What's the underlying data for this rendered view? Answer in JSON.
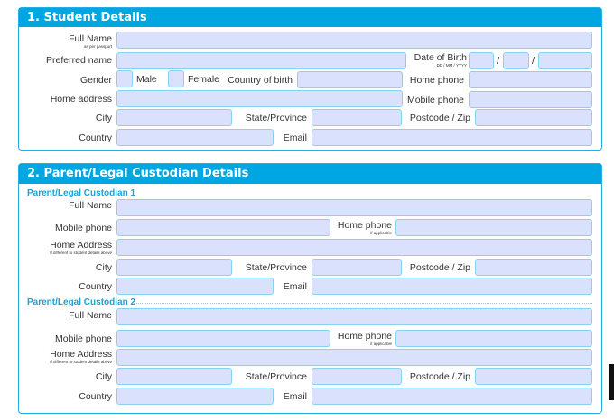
{
  "student": {
    "title": "1. Student Details",
    "full_name": "Full Name",
    "full_name_sub": "as per passport",
    "preferred_name": "Preferred name",
    "dob": "Date of Birth",
    "dob_sub": "DD / MM / YYYY",
    "dob_sep1": "/",
    "dob_sep2": "/",
    "gender": "Gender",
    "male": "Male",
    "female": "Female",
    "country_of_birth": "Country of birth",
    "home_phone": "Home phone",
    "home_address": "Home address",
    "mobile_phone": "Mobile phone",
    "city": "City",
    "state": "State/Province",
    "postcode": "Postcode / Zip",
    "country": "Country",
    "email": "Email"
  },
  "parent": {
    "title": "2. Parent/Legal Custodian Details",
    "custodians": [
      {
        "heading": "Parent/Legal Custodian 1",
        "full_name": "Full Name",
        "mobile_phone": "Mobile phone",
        "home_phone": "Home phone",
        "home_phone_sub": "if applicable",
        "home_address": "Home Address",
        "home_address_sub": "If different to student details above",
        "city": "City",
        "state": "State/Province",
        "postcode": "Postcode / Zip",
        "country": "Country",
        "email": "Email"
      },
      {
        "heading": "Parent/Legal Custodian 2",
        "full_name": "Full Name",
        "mobile_phone": "Mobile phone",
        "home_phone": "Home phone",
        "home_phone_sub": "if applicable",
        "home_address": "Home Address",
        "home_address_sub": "If different to student details above",
        "city": "City",
        "state": "State/Province",
        "postcode": "Postcode / Zip",
        "country": "Country",
        "email": "Email"
      }
    ]
  },
  "colors": {
    "accent": "#00a6e1",
    "field_fill": "#d9e1fd",
    "field_border": "#86d3ef",
    "heading_text": "#1ba3d9"
  }
}
